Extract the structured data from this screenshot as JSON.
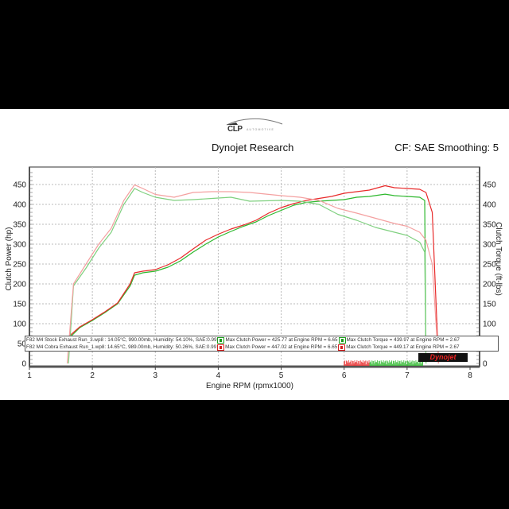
{
  "header": {
    "logo_text": "CLP",
    "logo_subtext": "AUTOMOTIVE",
    "title": "Dynojet Research",
    "correction": "CF: SAE Smoothing: 5"
  },
  "legend": {
    "rows": [
      {
        "run": "F82 M4 Stock Exhaust Run_3.wp8 : 14.05°C, 990.00mb, Humidity: 54.10%, SAE:0.99",
        "power": "Max Clutch Power = 425.77 at Engine RPM = 6.65",
        "torque": "Max Clutch Torque = 439.97 at Engine RPM = 2.67",
        "color": "#1a9a1a"
      },
      {
        "run": "F82 M4 Cobra Exhaust Run_1.wp8: 14.65°C, 989.00mb, Humidity: 50.26%, SAE:0.99",
        "power": "Max Clutch Power = 447.02 at Engine RPM = 6.65",
        "torque": "Max Clutch Torque = 449.17 at Engine RPM = 2.67",
        "color": "#d42020"
      }
    ]
  },
  "watermark": "Dynojet",
  "chart_data": {
    "type": "line",
    "title": "Dynojet Research",
    "subtitle": "CF: SAE Smoothing: 5",
    "xlabel": "Engine RPM (rpmx1000)",
    "ylabel": "Clutch Power (hp)",
    "ylabel_right": "Clutch Torque (ft-lbs)",
    "xlim": [
      1,
      8
    ],
    "ylim": [
      0,
      500
    ],
    "ylim_right": [
      0,
      500
    ],
    "x_ticks": [
      1,
      2,
      3,
      4,
      5,
      6,
      7,
      8
    ],
    "y_ticks": [
      0,
      50,
      100,
      150,
      200,
      250,
      300,
      350,
      400,
      450
    ],
    "grid": true,
    "legend_position": "bottom-inside",
    "series": [
      {
        "name": "F82 M4 Stock Exhaust Run_3 - Clutch Power (hp)",
        "color": "#2db82d",
        "x": [
          1.62,
          1.8,
          2.0,
          2.2,
          2.4,
          2.6,
          2.67,
          2.8,
          3.0,
          3.2,
          3.4,
          3.6,
          3.8,
          4.0,
          4.2,
          4.4,
          4.6,
          4.8,
          5.0,
          5.2,
          5.4,
          5.6,
          5.8,
          6.0,
          6.2,
          6.4,
          6.65,
          6.8,
          7.0,
          7.2,
          7.28,
          7.3
        ],
        "values": [
          62,
          90,
          108,
          128,
          150,
          195,
          222,
          228,
          232,
          242,
          258,
          280,
          300,
          318,
          332,
          345,
          356,
          372,
          385,
          398,
          405,
          408,
          410,
          412,
          418,
          420,
          425.77,
          422,
          420,
          418,
          410,
          0
        ]
      },
      {
        "name": "F82 M4 Cobra Exhaust Run_1 - Clutch Power (hp)",
        "color": "#e82a2a",
        "x": [
          1.6,
          1.8,
          2.0,
          2.2,
          2.4,
          2.6,
          2.67,
          2.8,
          3.0,
          3.2,
          3.4,
          3.6,
          3.8,
          4.0,
          4.2,
          4.4,
          4.6,
          4.8,
          5.0,
          5.2,
          5.4,
          5.6,
          5.8,
          6.0,
          6.2,
          6.4,
          6.65,
          6.8,
          7.0,
          7.2,
          7.3,
          7.4,
          7.5
        ],
        "values": [
          64,
          92,
          110,
          130,
          152,
          200,
          228,
          232,
          236,
          248,
          265,
          288,
          310,
          325,
          338,
          348,
          360,
          378,
          392,
          402,
          410,
          415,
          420,
          428,
          432,
          436,
          447.02,
          442,
          440,
          438,
          430,
          380,
          0
        ]
      },
      {
        "name": "F82 M4 Stock Exhaust Run_3 - Clutch Torque (ft-lbs)",
        "color": "#7fd07f",
        "x": [
          1.62,
          1.7,
          1.9,
          2.1,
          2.3,
          2.5,
          2.67,
          2.8,
          3.0,
          3.3,
          3.6,
          3.9,
          4.2,
          4.5,
          5.0,
          5.3,
          5.6,
          5.9,
          6.2,
          6.5,
          6.8,
          7.0,
          7.2,
          7.28,
          7.3
        ],
        "values": [
          0,
          195,
          240,
          290,
          330,
          400,
          439.97,
          430,
          418,
          410,
          412,
          415,
          418,
          408,
          410,
          408,
          400,
          375,
          360,
          342,
          330,
          322,
          305,
          280,
          0
        ]
      },
      {
        "name": "F82 M4 Cobra Exhaust Run_1 - Clutch Torque (ft-lbs)",
        "color": "#f4a0a0",
        "x": [
          1.6,
          1.7,
          1.9,
          2.1,
          2.3,
          2.5,
          2.67,
          2.8,
          3.0,
          3.3,
          3.6,
          3.9,
          4.2,
          4.5,
          5.0,
          5.3,
          5.6,
          5.9,
          6.2,
          6.5,
          6.8,
          7.0,
          7.2,
          7.3,
          7.4,
          7.5
        ],
        "values": [
          0,
          200,
          250,
          300,
          340,
          410,
          449.17,
          440,
          425,
          418,
          430,
          432,
          432,
          430,
          422,
          418,
          410,
          390,
          378,
          365,
          352,
          345,
          330,
          310,
          250,
          0
        ]
      }
    ]
  }
}
